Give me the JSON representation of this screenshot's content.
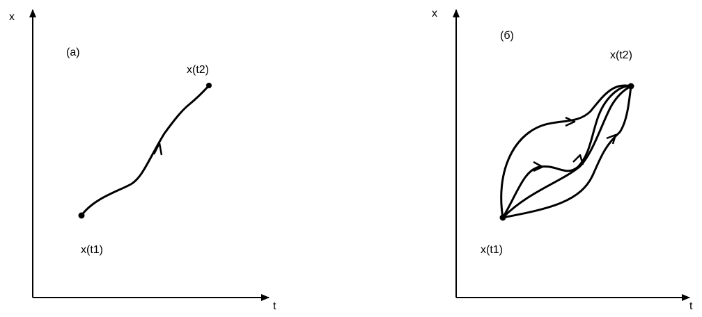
{
  "panel_a": {
    "axis_x_label": "t",
    "axis_y_label": "x",
    "panel_label": "(a)",
    "start_label": "x(t1)",
    "end_label": "x(t2)"
  },
  "panel_b": {
    "axis_x_label": "t",
    "axis_y_label": "x",
    "panel_label": "(б)",
    "start_label": "x(t1)",
    "end_label": "x(t2)"
  },
  "colors": {
    "ink": "#000000",
    "background": "#ffffff"
  }
}
